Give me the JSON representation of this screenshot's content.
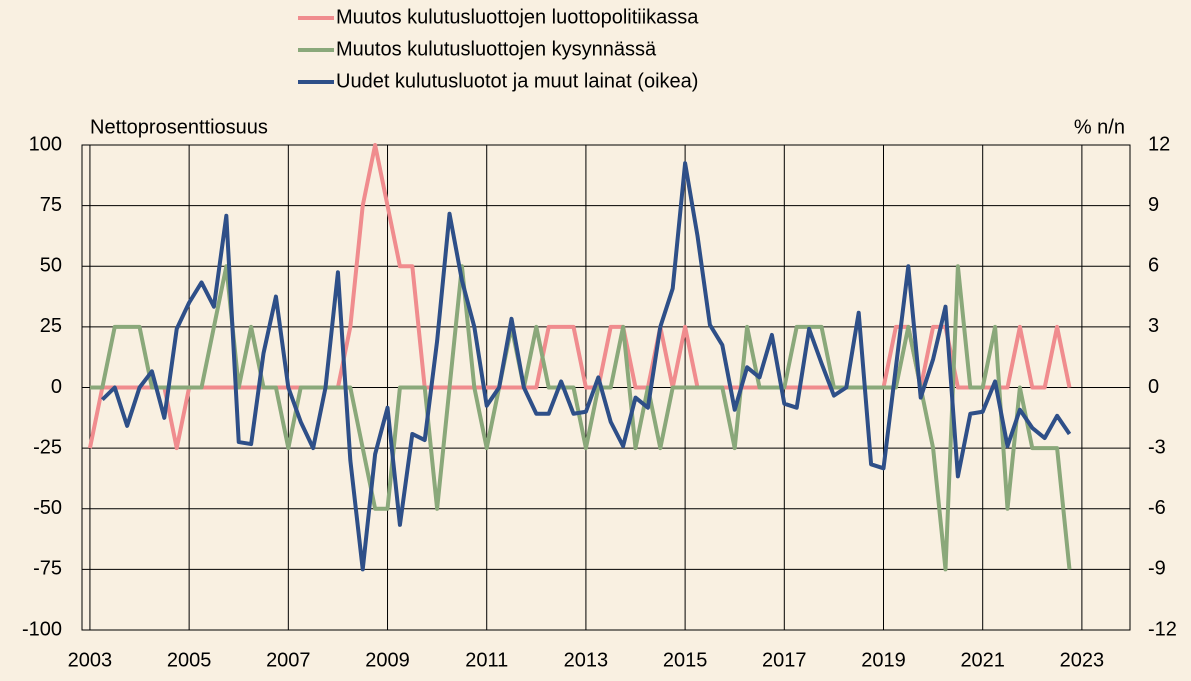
{
  "chart_data": {
    "type": "line",
    "y_label": "Nettoprosenttiosuus",
    "y2_label": "% n/n",
    "x": [
      2003,
      2003.25,
      2003.5,
      2003.75,
      2004,
      2004.25,
      2004.5,
      2004.75,
      2005,
      2005.25,
      2005.5,
      2005.75,
      2006,
      2006.25,
      2006.5,
      2006.75,
      2007,
      2007.25,
      2007.5,
      2007.75,
      2008,
      2008.25,
      2008.5,
      2008.75,
      2009,
      2009.25,
      2009.5,
      2009.75,
      2010,
      2010.25,
      2010.5,
      2010.75,
      2011,
      2011.25,
      2011.5,
      2011.75,
      2012,
      2012.25,
      2012.5,
      2012.75,
      2013,
      2013.25,
      2013.5,
      2013.75,
      2014,
      2014.25,
      2014.5,
      2014.75,
      2015,
      2015.25,
      2015.5,
      2015.75,
      2016,
      2016.25,
      2016.5,
      2016.75,
      2017,
      2017.25,
      2017.5,
      2017.75,
      2018,
      2018.25,
      2018.5,
      2018.75,
      2019,
      2019.25,
      2019.5,
      2019.75,
      2020,
      2020.25,
      2020.5,
      2020.75,
      2021,
      2021.25,
      2021.5,
      2021.75,
      2022,
      2022.25,
      2022.5,
      2022.75
    ],
    "series": [
      {
        "name": "Muutos kulutusluottojen luottopolitiikassa",
        "color": "#f08c8e",
        "values": [
          -25,
          0,
          0,
          0,
          0,
          0,
          0,
          -25,
          0,
          0,
          0,
          0,
          0,
          0,
          0,
          0,
          0,
          0,
          0,
          0,
          0,
          25,
          75,
          100,
          75,
          50,
          50,
          0,
          0,
          0,
          0,
          0,
          0,
          0,
          0,
          0,
          0,
          25,
          25,
          25,
          0,
          0,
          25,
          25,
          0,
          0,
          25,
          0,
          25,
          0,
          0,
          0,
          0,
          0,
          0,
          0,
          0,
          0,
          0,
          0,
          0,
          0,
          0,
          0,
          0,
          25,
          25,
          0,
          25,
          25,
          0,
          0,
          0,
          0,
          0,
          25,
          0,
          0,
          25,
          0
        ]
      },
      {
        "name": "Muutos kulutusluottojen kysynnässä",
        "color": "#8aa87a",
        "values": [
          0,
          0,
          25,
          25,
          25,
          0,
          0,
          0,
          0,
          0,
          25,
          50,
          0,
          25,
          0,
          0,
          -25,
          0,
          0,
          0,
          0,
          0,
          -25,
          -50,
          -50,
          0,
          0,
          0,
          -50,
          0,
          50,
          0,
          -25,
          0,
          25,
          0,
          25,
          0,
          0,
          0,
          -25,
          0,
          0,
          25,
          -25,
          0,
          -25,
          0,
          0,
          0,
          0,
          0,
          -25,
          25,
          0,
          0,
          0,
          25,
          25,
          25,
          0,
          0,
          0,
          0,
          0,
          0,
          25,
          0,
          -25,
          -75,
          50,
          0,
          0,
          25,
          -50,
          0,
          -25,
          -25,
          -25,
          -75
        ]
      },
      {
        "name": "Uudet kulutusluotot ja muut lainat (oikea)",
        "color": "#2e4f88",
        "axis": "y2",
        "values": [
          null,
          -0.6,
          0,
          -1.9,
          0,
          0.8,
          -1.5,
          2.9,
          4.2,
          5.2,
          4,
          8.5,
          -2.7,
          -2.8,
          1.7,
          4.5,
          0,
          -1.7,
          -3,
          0,
          5.7,
          -3.6,
          -9,
          -3.3,
          -1,
          -6.8,
          -2.3,
          -2.6,
          2.3,
          8.6,
          5.3,
          3,
          -0.9,
          0,
          3.4,
          0,
          -1.3,
          -1.3,
          0.3,
          -1.3,
          -1.2,
          0.5,
          -1.7,
          -2.9,
          -0.5,
          -1,
          3,
          4.9,
          11.1,
          7.5,
          3.1,
          2.1,
          -1.1,
          1,
          0.5,
          2.6,
          -0.8,
          -1,
          2.9,
          1.2,
          -0.4,
          0,
          3.7,
          -3.8,
          -4,
          1,
          6,
          -0.5,
          1.4,
          4,
          -4.4,
          -1.3,
          -1.2,
          0.3,
          -2.9,
          -1.1,
          -2,
          -2.5,
          -1.4,
          -2.3
        ]
      }
    ],
    "xlim": [
      2002.84,
      2023.97
    ],
    "xticks": [
      2003,
      2005,
      2007,
      2009,
      2011,
      2013,
      2015,
      2017,
      2019,
      2021,
      2023
    ],
    "ylim": [
      -100,
      100
    ],
    "yticks": [
      -100,
      -75,
      -50,
      -25,
      0,
      25,
      50,
      75,
      100
    ],
    "y2lim": [
      -12,
      12
    ],
    "y2ticks": [
      -12,
      -9,
      -6,
      -3,
      0,
      3,
      6,
      9,
      12
    ],
    "grid": true
  }
}
